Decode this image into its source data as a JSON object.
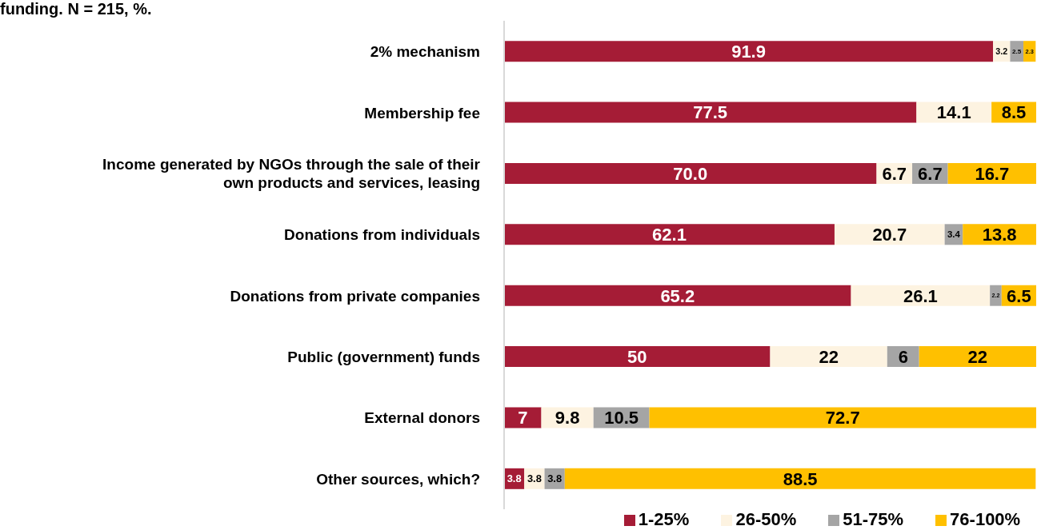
{
  "chart_data": {
    "type": "bar",
    "orientation": "horizontal",
    "stacked": true,
    "title": "funding. N = 215, %.",
    "categories": [
      "2% mechanism",
      "Membership fee",
      "Income generated by NGOs through the sale of their own products and services, leasing",
      "Donations from individuals",
      "Donations from private companies",
      "Public (government) funds",
      "External donors",
      "Other sources, which?"
    ],
    "series": [
      {
        "name": "1-25%",
        "color": "#a51c36",
        "values": [
          91.9,
          77.5,
          70.0,
          62.1,
          65.2,
          50,
          7,
          3.8
        ],
        "value_labels": [
          "91.9",
          "77.5",
          "70.0",
          "62.1",
          "65.2",
          "50",
          "7",
          "3.8"
        ]
      },
      {
        "name": "26-50%",
        "color": "#fdf3e1",
        "values": [
          3.2,
          14.1,
          6.7,
          20.7,
          26.1,
          22,
          9.8,
          3.8
        ],
        "value_labels": [
          "3.2",
          "14.1",
          "6.7",
          "20.7",
          "26.1",
          "22",
          "9.8",
          "3.8"
        ]
      },
      {
        "name": "51-75%",
        "color": "#a5a5a5",
        "values": [
          2.5,
          null,
          6.7,
          3.4,
          2.2,
          6,
          10.5,
          3.8
        ],
        "value_labels": [
          "2.5",
          null,
          "6.7",
          "3.4",
          "2.2",
          "6",
          "10.5",
          "3.8"
        ]
      },
      {
        "name": "76-100%",
        "color": "#ffc000",
        "values": [
          2.3,
          8.5,
          16.7,
          13.8,
          6.5,
          22,
          72.7,
          88.5
        ],
        "value_labels": [
          "2.3",
          "8.5",
          "16.7",
          "13.8",
          "6.5",
          "22",
          "72.7",
          "88.5"
        ]
      }
    ],
    "xlim": [
      0,
      100
    ],
    "tick_labels": "y",
    "legend": "bottom"
  }
}
